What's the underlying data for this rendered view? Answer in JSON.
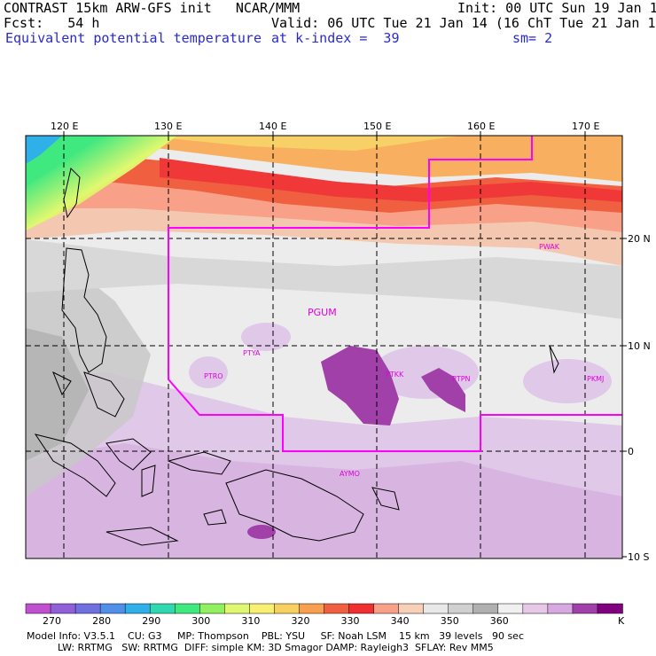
{
  "header": {
    "model_line": "CONTRAST 15km ARW-GFS init   NCAR/MMM",
    "forecast_line": "Fcst:   54 h",
    "field_name": "Equivalent potential temperature",
    "init_line": "Init: 00 UTC Sun 19 Jan 14",
    "valid_line": "Valid: 06 UTC Tue 21 Jan 14 (16 ChT Tue 21 Jan 14)",
    "level_line": "at k-index =  39",
    "smooth_line": "sm= 2"
  },
  "map": {
    "lon_labels": [
      "120 E",
      "130 E",
      "140 E",
      "150 E",
      "160 E",
      "170 E"
    ],
    "lat_labels": [
      "20 N",
      "10 N",
      "0",
      "10 S"
    ],
    "stations": [
      {
        "id": "PWAK"
      },
      {
        "id": "PGUM"
      },
      {
        "id": "PTYA"
      },
      {
        "id": "PTRO"
      },
      {
        "id": "PTKK"
      },
      {
        "id": "PTPN"
      },
      {
        "id": "PKMJ"
      },
      {
        "id": "AYMO"
      }
    ]
  },
  "colorbar": {
    "unit": "K",
    "tick_labels": [
      "270",
      "280",
      "290",
      "300",
      "310",
      "320",
      "330",
      "340",
      "350",
      "360"
    ],
    "colors": [
      "#c050d0",
      "#9060d8",
      "#7070e0",
      "#5090e8",
      "#30b0e8",
      "#30d8b0",
      "#40e880",
      "#90f060",
      "#e0f870",
      "#f8f070",
      "#f8d060",
      "#f8a050",
      "#f06040",
      "#f03030",
      "#f8a088",
      "#f8d0b8",
      "#e8e8e8",
      "#d0d0d0",
      "#b0b0b0",
      "#f0f0f0",
      "#e8c8e8",
      "#d8a8e0",
      "#a040a8",
      "#800080"
    ]
  },
  "footer": {
    "line1": "Model Info: V3.5.1    CU: G3     MP: Thompson    PBL: YSU     SF: Noah LSM    15 km   39 levels   90 sec",
    "line2": "          LW: RRTMG   SW: RRTMG  DIFF: simple KM: 3D Smagor DAMP: Rayleigh3  SFLAY: Rev MM5"
  }
}
